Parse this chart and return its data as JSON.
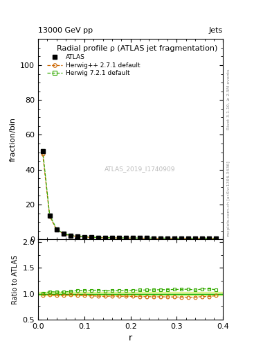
{
  "title": "Radial profile ρ (ATLAS jet fragmentation)",
  "top_left_label": "13000 GeV pp",
  "top_right_label": "Jets",
  "right_label_top": "Rivet 3.1.10, ≥ 2.5M events",
  "right_label_bottom": "mcplots.cern.ch [arXiv:1306.3436]",
  "watermark": "ATLAS_2019_I1740909",
  "ylabel_main": "fraction/bin",
  "ylabel_ratio": "Ratio to ATLAS",
  "xlabel": "r",
  "ylim_main": [
    0,
    115
  ],
  "ylim_ratio": [
    0.5,
    2.05
  ],
  "yticks_main": [
    0,
    20,
    40,
    60,
    80,
    100
  ],
  "yticks_ratio": [
    0.5,
    1.0,
    1.5,
    2.0
  ],
  "xlim": [
    0,
    0.4
  ],
  "xticks": [
    0,
    0.1,
    0.2,
    0.3,
    0.4
  ],
  "r_centers": [
    0.01,
    0.025,
    0.04,
    0.055,
    0.07,
    0.085,
    0.1,
    0.115,
    0.13,
    0.145,
    0.16,
    0.175,
    0.19,
    0.205,
    0.22,
    0.235,
    0.25,
    0.265,
    0.28,
    0.295,
    0.31,
    0.325,
    0.34,
    0.355,
    0.37,
    0.385
  ],
  "atlas_values": [
    50.5,
    13.5,
    5.8,
    3.2,
    2.2,
    1.7,
    1.4,
    1.2,
    1.05,
    0.95,
    0.88,
    0.82,
    0.78,
    0.75,
    0.72,
    0.7,
    0.68,
    0.66,
    0.64,
    0.62,
    0.6,
    0.58,
    0.57,
    0.55,
    0.54,
    0.53
  ],
  "atlas_errors": [
    0.5,
    0.2,
    0.1,
    0.08,
    0.06,
    0.05,
    0.04,
    0.03,
    0.03,
    0.02,
    0.02,
    0.02,
    0.02,
    0.02,
    0.02,
    0.02,
    0.02,
    0.02,
    0.02,
    0.02,
    0.02,
    0.02,
    0.02,
    0.02,
    0.02,
    0.02
  ],
  "herwig_pp_values": [
    49.0,
    13.2,
    5.6,
    3.1,
    2.15,
    1.65,
    1.35,
    1.15,
    1.0,
    0.9,
    0.84,
    0.78,
    0.74,
    0.71,
    0.68,
    0.66,
    0.64,
    0.62,
    0.6,
    0.58,
    0.56,
    0.54,
    0.53,
    0.52,
    0.51,
    0.51
  ],
  "herwig7_values": [
    51.0,
    14.0,
    6.0,
    3.3,
    2.3,
    1.8,
    1.48,
    1.28,
    1.12,
    1.0,
    0.93,
    0.87,
    0.83,
    0.8,
    0.77,
    0.75,
    0.73,
    0.71,
    0.69,
    0.67,
    0.65,
    0.63,
    0.61,
    0.6,
    0.59,
    0.57
  ],
  "ratio_herwig_pp": [
    0.97,
    0.978,
    0.966,
    0.969,
    0.977,
    0.971,
    0.964,
    0.958,
    0.952,
    0.947,
    0.955,
    0.951,
    0.949,
    0.947,
    0.944,
    0.943,
    0.941,
    0.939,
    0.938,
    0.935,
    0.933,
    0.931,
    0.93,
    0.945,
    0.944,
    0.962
  ],
  "ratio_herwig7": [
    1.01,
    1.037,
    1.034,
    1.031,
    1.045,
    1.059,
    1.057,
    1.067,
    1.067,
    1.053,
    1.057,
    1.061,
    1.064,
    1.067,
    1.069,
    1.071,
    1.074,
    1.076,
    1.078,
    1.081,
    1.083,
    1.086,
    1.07,
    1.091,
    1.093,
    1.075
  ],
  "atlas_color": "#000000",
  "atlas_marker": "s",
  "atlas_markersize": 5,
  "herwig_pp_color": "#cc6600",
  "herwig_pp_marker": "o",
  "herwig7_color": "#33aa00",
  "herwig7_marker": "s",
  "legend_labels": [
    "ATLAS",
    "Herwig++ 2.7.1 default",
    "Herwig 7.2.1 default"
  ],
  "band_color": "#ccee44",
  "band_alpha": 0.5,
  "ref_line_color": "#00aa00"
}
